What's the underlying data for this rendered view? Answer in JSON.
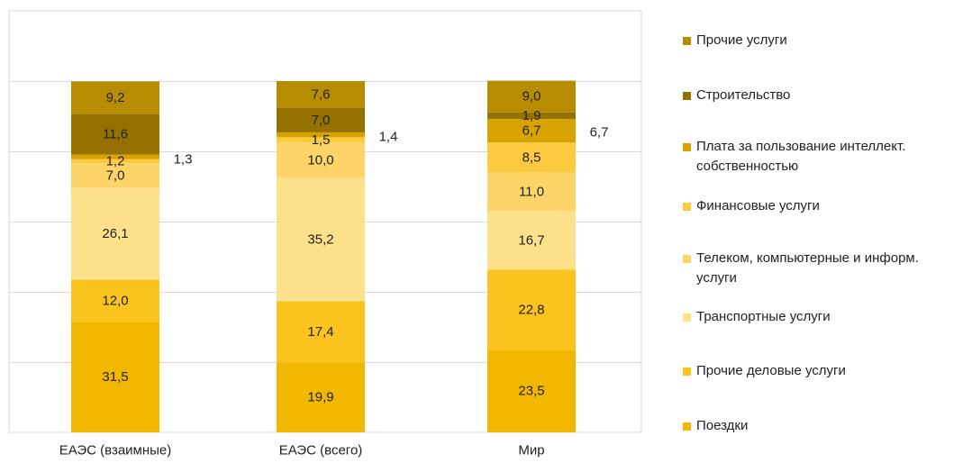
{
  "chart_data": {
    "type": "bar",
    "stacked": true,
    "categories": [
      "ЕАЭС (взаимные)",
      "ЕАЭС (всего)",
      "Мир"
    ],
    "series": [
      {
        "name": "Поездки",
        "color": "#f2b800",
        "values": [
          31.5,
          19.9,
          23.5
        ]
      },
      {
        "name": "Прочие деловые услуги",
        "color": "#fac31e",
        "values": [
          12.0,
          17.4,
          22.8
        ]
      },
      {
        "name": "Транспортные услуги",
        "color": "#fde08a",
        "values": [
          26.1,
          35.2,
          16.7
        ]
      },
      {
        "name": "Телеком, компьютерные и информ. услуги",
        "color": "#fdd468",
        "values": [
          7.0,
          10.0,
          11.0
        ]
      },
      {
        "name": "Финансовые услуги",
        "color": "#fcc93f",
        "values": [
          1.2,
          1.5,
          8.5
        ]
      },
      {
        "name": "Плата за пользование интеллект. собственностью",
        "color": "#d8a300",
        "values": [
          1.3,
          1.4,
          6.7
        ]
      },
      {
        "name": "Строительство",
        "color": "#957200",
        "values": [
          11.6,
          7.0,
          1.9
        ]
      },
      {
        "name": "Прочие услуги",
        "color": "#b88c00",
        "values": [
          9.2,
          7.6,
          9.0
        ]
      }
    ],
    "ylim": [
      0,
      120
    ],
    "grid": true,
    "legend_position": "right",
    "value_labels": true,
    "outside_labels": [
      {
        "category": "ЕАЭС (взаимные)",
        "series": "Плата за пользование интеллект. собственностью",
        "text": "1,3"
      },
      {
        "category": "ЕАЭС (всего)",
        "series": "Плата за пользование интеллект. собственностью",
        "text": "1,4"
      },
      {
        "category": "Мир",
        "series": "Плата за пользование интеллект. собственностью",
        "text": "6,7"
      }
    ]
  },
  "legend": {
    "items": [
      {
        "label": "Прочие услуги",
        "color": "#b88c00"
      },
      {
        "label": "Строительство",
        "color": "#957200"
      },
      {
        "label": "Плата за пользование интеллект.\nсобственностью",
        "color": "#d8a300"
      },
      {
        "label": "Финансовые услуги",
        "color": "#fcc93f"
      },
      {
        "label": "Телеком, компьютерные и информ.\nуслуги",
        "color": "#fdd468"
      },
      {
        "label": "Транспортные услуги",
        "color": "#fde08a"
      },
      {
        "label": "Прочие деловые услуги",
        "color": "#fac31e"
      },
      {
        "label": "Поездки",
        "color": "#f2b800"
      }
    ]
  }
}
